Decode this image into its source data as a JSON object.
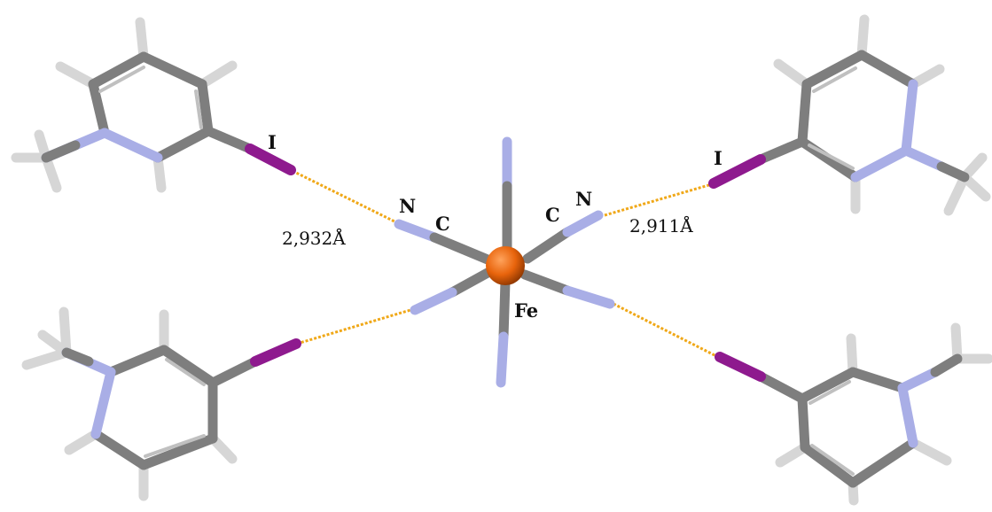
{
  "labels": {
    "iodine_left": "I",
    "iodine_right": "I",
    "nitrogen_left": "N",
    "carbon_left": "C",
    "carbon_right": "C",
    "nitrogen_right": "N",
    "iron": "Fe"
  },
  "distances": {
    "left": "2,932Å",
    "right": "2,911Å"
  },
  "colors": {
    "carbon": "#8c8c8c",
    "hydrogen": "#dcdcdc",
    "nitrogen": "#a9aee6",
    "iodine": "#8e1a8e",
    "iron": "#e8640c",
    "contact": "#f0a818"
  }
}
